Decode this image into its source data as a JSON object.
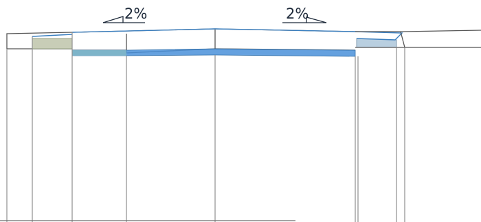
{
  "slopes": {
    "left": {
      "text": "2%",
      "direction": "left"
    },
    "right": {
      "text": "2%",
      "direction": "right"
    }
  },
  "colors": {
    "line": "#8e8e8e",
    "outline": "#555555",
    "blue_line": "#3a7fc0",
    "blue_fill": "#4a90d9",
    "olive_fill": "#c8cdb7",
    "light_blue_fill": "#b9cfe0",
    "text": "#1e2a3a"
  }
}
